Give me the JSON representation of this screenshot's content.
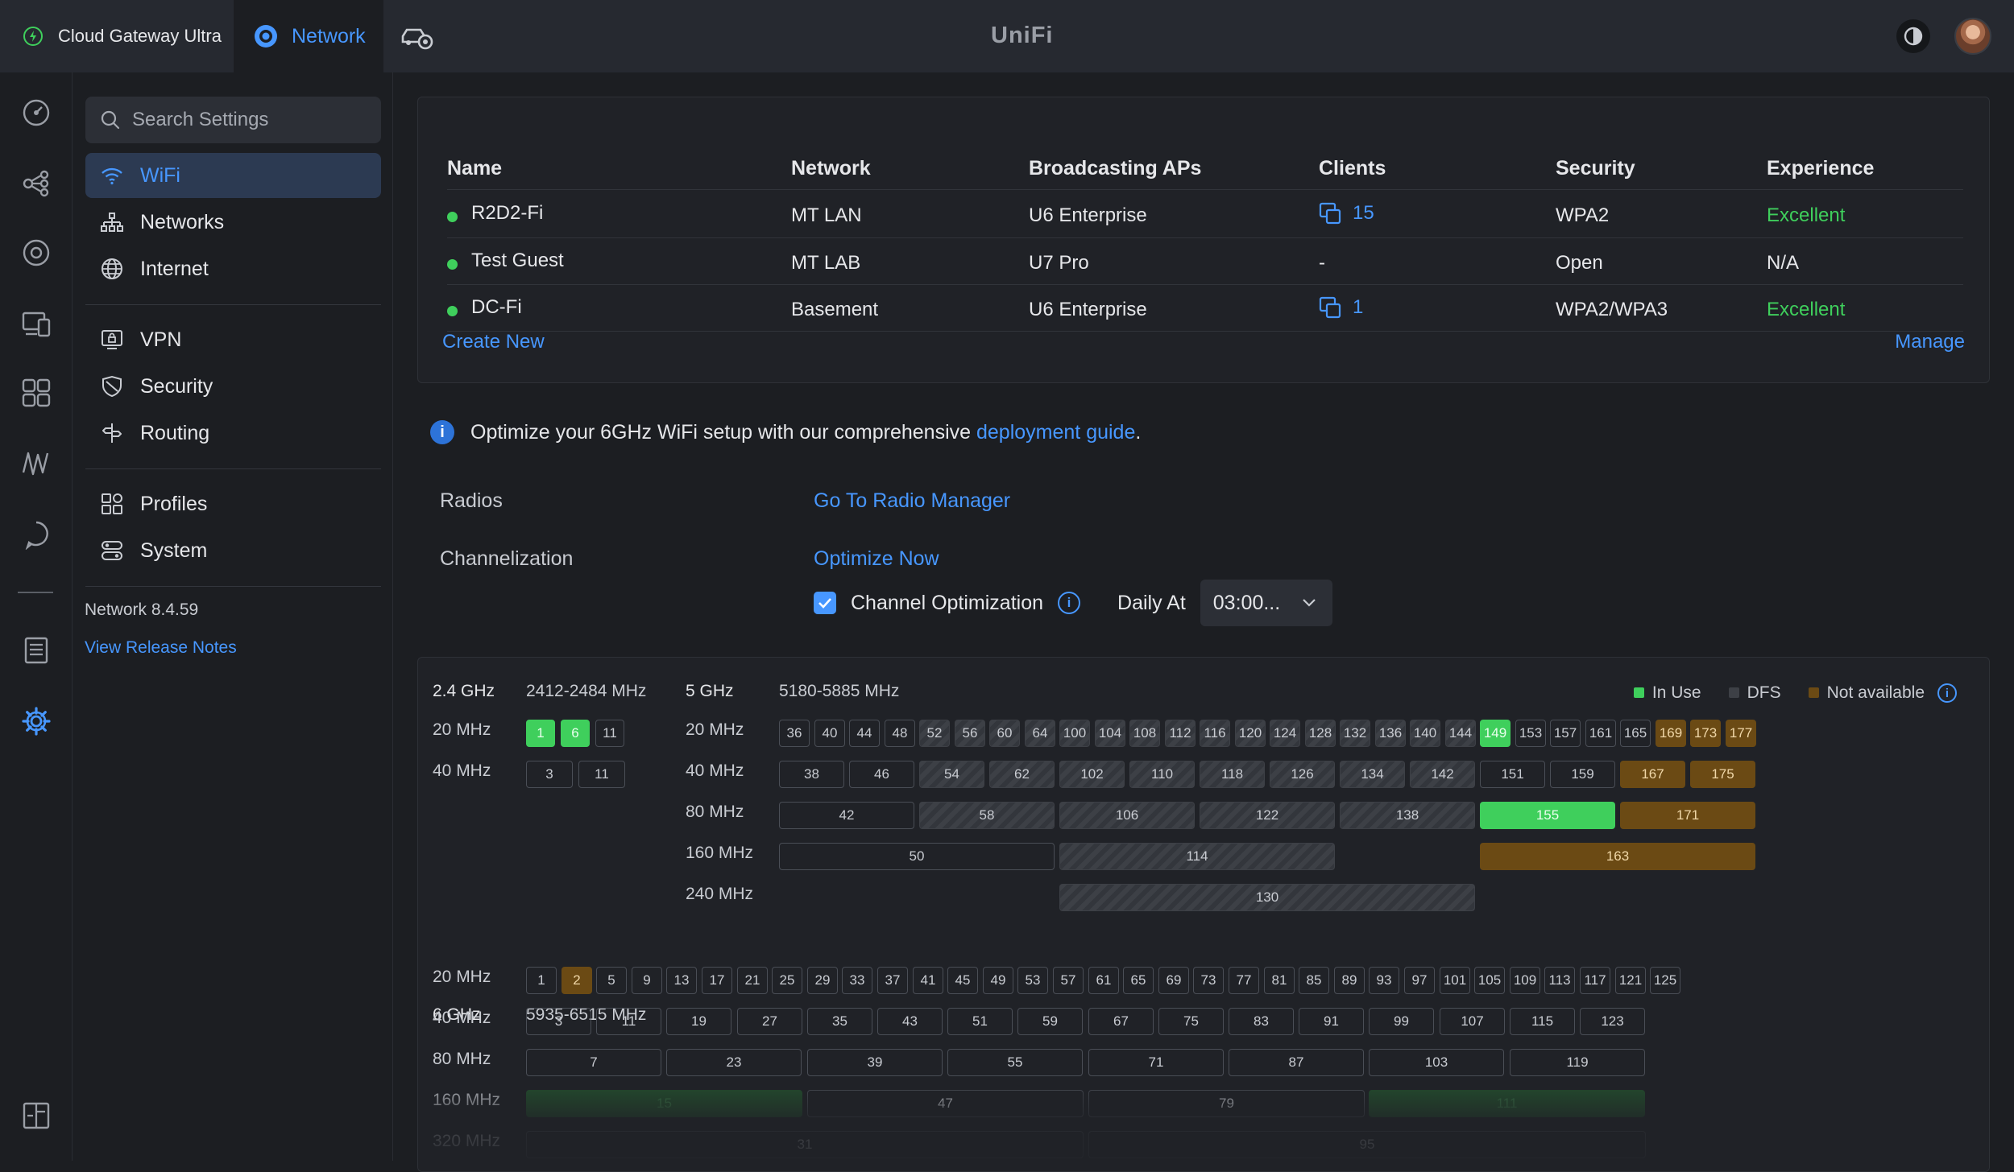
{
  "topbar": {
    "device_name": "Cloud Gateway Ultra",
    "app_tab": "Network",
    "logo": "UniFi"
  },
  "search": {
    "placeholder": "Search Settings"
  },
  "sidebar": {
    "items": [
      {
        "label": "WiFi",
        "icon": "wifi-icon",
        "active": true
      },
      {
        "label": "Networks",
        "icon": "network-tree-icon"
      },
      {
        "label": "Internet",
        "icon": "globe-icon"
      },
      {
        "label": "VPN",
        "icon": "vpn-icon"
      },
      {
        "label": "Security",
        "icon": "shield-icon"
      },
      {
        "label": "Routing",
        "icon": "routing-icon"
      },
      {
        "label": "Profiles",
        "icon": "profiles-icon"
      },
      {
        "label": "System",
        "icon": "system-icon"
      }
    ],
    "version": "Network 8.4.59",
    "release_notes": "View Release Notes"
  },
  "rail": [
    "dashboard-icon",
    "topology-icon",
    "unifi-devices-icon",
    "client-devices-icon",
    "apps-icon",
    "insights-icon",
    "support-icon",
    "logs-icon",
    "settings-icon",
    "collapse-icon"
  ],
  "wifi_table": {
    "headers": [
      "Name",
      "Network",
      "Broadcasting APs",
      "Clients",
      "Security",
      "Experience"
    ],
    "rows": [
      {
        "name": "R2D2-Fi",
        "network": "MT LAN",
        "aps": "U6 Enterprise",
        "clients": "15",
        "security": "WPA2",
        "experience": "Excellent"
      },
      {
        "name": "Test Guest",
        "network": "MT LAB",
        "aps": "U7 Pro",
        "clients": "-",
        "security": "Open",
        "experience": "N/A"
      },
      {
        "name": "DC-Fi",
        "network": "Basement",
        "aps": "U6 Enterprise",
        "clients": "1",
        "security": "WPA2/WPA3",
        "experience": "Excellent"
      }
    ],
    "create_new": "Create New",
    "manage": "Manage"
  },
  "info": {
    "text": "Optimize your 6GHz WiFi setup with our comprehensive",
    "link": "deployment guide",
    "suffix": "."
  },
  "radios": {
    "label": "Radios",
    "action": "Go To Radio Manager"
  },
  "channelization": {
    "label": "Channelization",
    "action": "Optimize Now",
    "checkbox_label": "Channel Optimization",
    "checked": true,
    "daily_label": "Daily At",
    "daily_value": "03:00..."
  },
  "channels": {
    "legend": [
      "In Use",
      "DFS",
      "Not available"
    ],
    "colors": {
      "in_use": "#3fcf5c",
      "dfs": "#3d4046",
      "not_available": "#6b4a14",
      "accent": "#4797ff"
    },
    "band24": {
      "label": "2.4 GHz",
      "range": "2412-2484 MHz",
      "rows": [
        {
          "width": "20 MHz",
          "channels": [
            {
              "n": "1",
              "s": "inuse"
            },
            {
              "n": "6",
              "s": "inuse"
            },
            {
              "n": "11",
              "s": ""
            }
          ]
        },
        {
          "width": "40 MHz",
          "channels": [
            {
              "n": "3",
              "s": ""
            },
            {
              "n": "11",
              "s": ""
            }
          ]
        }
      ]
    },
    "band5": {
      "label": "5 GHz",
      "range": "5180-5885 MHz",
      "rows": [
        {
          "width": "20 MHz",
          "channels": [
            {
              "n": "36",
              "s": ""
            },
            {
              "n": "40",
              "s": ""
            },
            {
              "n": "44",
              "s": ""
            },
            {
              "n": "48",
              "s": ""
            },
            {
              "n": "52",
              "s": "dfs"
            },
            {
              "n": "56",
              "s": "dfs"
            },
            {
              "n": "60",
              "s": "dfs"
            },
            {
              "n": "64",
              "s": "dfs"
            },
            {
              "n": "100",
              "s": "dfs"
            },
            {
              "n": "104",
              "s": "dfs"
            },
            {
              "n": "108",
              "s": "dfs"
            },
            {
              "n": "112",
              "s": "dfs"
            },
            {
              "n": "116",
              "s": "dfs"
            },
            {
              "n": "120",
              "s": "dfs"
            },
            {
              "n": "124",
              "s": "dfs"
            },
            {
              "n": "128",
              "s": "dfs"
            },
            {
              "n": "132",
              "s": "dfs"
            },
            {
              "n": "136",
              "s": "dfs"
            },
            {
              "n": "140",
              "s": "dfs"
            },
            {
              "n": "144",
              "s": "dfs"
            },
            {
              "n": "149",
              "s": "inuse"
            },
            {
              "n": "153",
              "s": ""
            },
            {
              "n": "157",
              "s": ""
            },
            {
              "n": "161",
              "s": ""
            },
            {
              "n": "165",
              "s": ""
            },
            {
              "n": "169",
              "s": "na"
            },
            {
              "n": "173",
              "s": "na"
            },
            {
              "n": "177",
              "s": "na"
            }
          ]
        },
        {
          "width": "40 MHz",
          "channels": [
            {
              "n": "38",
              "s": ""
            },
            {
              "n": "46",
              "s": ""
            },
            {
              "n": "54",
              "s": "dfs"
            },
            {
              "n": "62",
              "s": "dfs"
            },
            {
              "n": "102",
              "s": "dfs"
            },
            {
              "n": "110",
              "s": "dfs"
            },
            {
              "n": "118",
              "s": "dfs"
            },
            {
              "n": "126",
              "s": "dfs"
            },
            {
              "n": "134",
              "s": "dfs"
            },
            {
              "n": "142",
              "s": "dfs"
            },
            {
              "n": "151",
              "s": ""
            },
            {
              "n": "159",
              "s": ""
            },
            {
              "n": "167",
              "s": "na"
            },
            {
              "n": "175",
              "s": "na"
            }
          ]
        },
        {
          "width": "80 MHz",
          "channels": [
            {
              "n": "42",
              "s": ""
            },
            {
              "n": "58",
              "s": "dfs"
            },
            {
              "n": "106",
              "s": "dfs"
            },
            {
              "n": "122",
              "s": "dfs"
            },
            {
              "n": "138",
              "s": "dfs"
            },
            {
              "n": "155",
              "s": "inuse"
            },
            {
              "n": "171",
              "s": "na"
            }
          ]
        },
        {
          "width": "160 MHz",
          "channels": [
            {
              "n": "50",
              "s": ""
            },
            {
              "n": "114",
              "s": "dfs"
            },
            {
              "n": "163",
              "s": "na"
            }
          ]
        },
        {
          "width": "240 MHz",
          "channels": [
            {
              "n": "130",
              "s": "dfs"
            }
          ]
        }
      ]
    },
    "band6": {
      "label": "6 GHz",
      "range": "5935-6515 MHz",
      "rows": [
        {
          "width": "20 MHz",
          "channels": [
            {
              "n": "1",
              "s": ""
            },
            {
              "n": "2",
              "s": "na"
            },
            {
              "n": "5",
              "s": ""
            },
            {
              "n": "9",
              "s": ""
            },
            {
              "n": "13",
              "s": ""
            },
            {
              "n": "17",
              "s": ""
            },
            {
              "n": "21",
              "s": ""
            },
            {
              "n": "25",
              "s": ""
            },
            {
              "n": "29",
              "s": ""
            },
            {
              "n": "33",
              "s": ""
            },
            {
              "n": "37",
              "s": ""
            },
            {
              "n": "41",
              "s": ""
            },
            {
              "n": "45",
              "s": ""
            },
            {
              "n": "49",
              "s": ""
            },
            {
              "n": "53",
              "s": ""
            },
            {
              "n": "57",
              "s": ""
            },
            {
              "n": "61",
              "s": ""
            },
            {
              "n": "65",
              "s": ""
            },
            {
              "n": "69",
              "s": ""
            },
            {
              "n": "73",
              "s": ""
            },
            {
              "n": "77",
              "s": ""
            },
            {
              "n": "81",
              "s": ""
            },
            {
              "n": "85",
              "s": ""
            },
            {
              "n": "89",
              "s": ""
            },
            {
              "n": "93",
              "s": ""
            },
            {
              "n": "97",
              "s": ""
            },
            {
              "n": "101",
              "s": ""
            },
            {
              "n": "105",
              "s": ""
            },
            {
              "n": "109",
              "s": ""
            },
            {
              "n": "113",
              "s": ""
            },
            {
              "n": "117",
              "s": ""
            },
            {
              "n": "121",
              "s": ""
            },
            {
              "n": "125",
              "s": ""
            }
          ]
        },
        {
          "width": "40 MHz",
          "channels": [
            {
              "n": "3",
              "s": ""
            },
            {
              "n": "11",
              "s": ""
            },
            {
              "n": "19",
              "s": ""
            },
            {
              "n": "27",
              "s": ""
            },
            {
              "n": "35",
              "s": ""
            },
            {
              "n": "43",
              "s": ""
            },
            {
              "n": "51",
              "s": ""
            },
            {
              "n": "59",
              "s": ""
            },
            {
              "n": "67",
              "s": ""
            },
            {
              "n": "75",
              "s": ""
            },
            {
              "n": "83",
              "s": ""
            },
            {
              "n": "91",
              "s": ""
            },
            {
              "n": "99",
              "s": ""
            },
            {
              "n": "107",
              "s": ""
            },
            {
              "n": "115",
              "s": ""
            },
            {
              "n": "123",
              "s": ""
            }
          ]
        },
        {
          "width": "80 MHz",
          "channels": [
            {
              "n": "7",
              "s": ""
            },
            {
              "n": "23",
              "s": ""
            },
            {
              "n": "39",
              "s": ""
            },
            {
              "n": "55",
              "s": ""
            },
            {
              "n": "71",
              "s": ""
            },
            {
              "n": "87",
              "s": ""
            },
            {
              "n": "103",
              "s": ""
            },
            {
              "n": "119",
              "s": ""
            }
          ]
        },
        {
          "width": "160 MHz",
          "channels": [
            {
              "n": "15",
              "s": "inusedim"
            },
            {
              "n": "47",
              "s": ""
            },
            {
              "n": "79",
              "s": ""
            },
            {
              "n": "111",
              "s": "inusedim"
            }
          ]
        },
        {
          "width": "320 MHz",
          "channels": [
            {
              "n": "31",
              "s": ""
            },
            {
              "n": "95",
              "s": ""
            }
          ]
        }
      ]
    }
  }
}
